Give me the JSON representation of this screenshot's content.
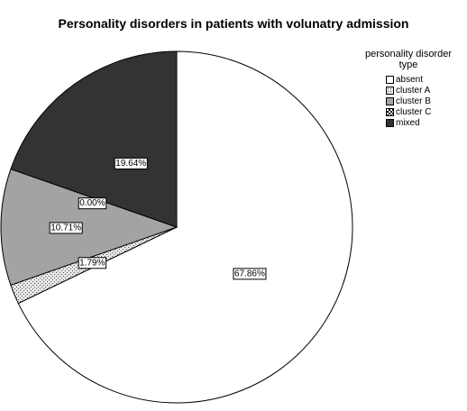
{
  "chart_data": {
    "type": "pie",
    "title": "Personality disorders in patients with volunatry admission",
    "legend_title_lines": [
      "personality disorder",
      "type"
    ],
    "legend_position": "top-right",
    "slices": [
      {
        "name": "absent",
        "value": 67.86,
        "label": "67.86%",
        "color": "#ffffff",
        "pattern": "none"
      },
      {
        "name": "cluster A",
        "value": 1.79,
        "label": "1.79%",
        "color": "#e6e6e6",
        "pattern": "dots"
      },
      {
        "name": "cluster B",
        "value": 10.71,
        "label": "10.71%",
        "color": "#a3a3a3",
        "pattern": "none"
      },
      {
        "name": "cluster C",
        "value": 0.0,
        "label": "0.00%",
        "color": "#ffffff",
        "pattern": "checker"
      },
      {
        "name": "mixed",
        "value": 19.64,
        "label": "19.64%",
        "color": "#333333",
        "pattern": "none"
      }
    ]
  }
}
